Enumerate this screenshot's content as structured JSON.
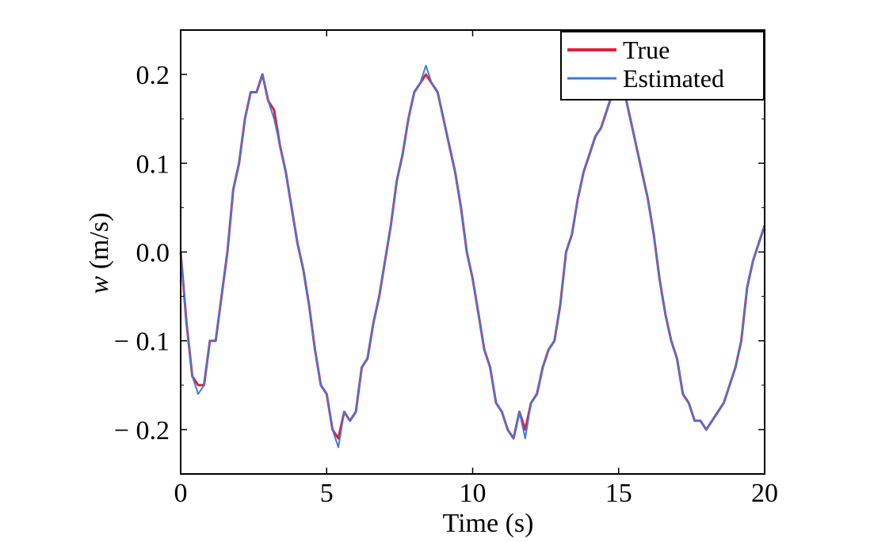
{
  "chart_data": {
    "type": "line",
    "xlabel": "Time (s)",
    "ylabel_var": "w",
    "ylabel_unit": " (m/s)",
    "xlim": [
      0,
      20
    ],
    "ylim": [
      -0.25,
      0.25
    ],
    "x_ticks": [
      0,
      5,
      10,
      15,
      20
    ],
    "x_tick_labels": [
      "0",
      "5",
      "10",
      "15",
      "20"
    ],
    "y_ticks": [
      0.2,
      0.1,
      0.0,
      -0.1,
      -0.2
    ],
    "y_tick_labels": [
      "0.2",
      "0.1",
      "0.0",
      "− 0.1",
      "− 0.2"
    ],
    "grid": false,
    "legend_position": "top-right",
    "series": [
      {
        "name": "True",
        "color": "#e0203a",
        "x": [
          0,
          0.2,
          0.4,
          0.6,
          0.8,
          1.0,
          1.2,
          1.4,
          1.6,
          1.8,
          2.0,
          2.2,
          2.4,
          2.6,
          2.8,
          3.0,
          3.2,
          3.4,
          3.6,
          3.8,
          4.0,
          4.2,
          4.4,
          4.6,
          4.8,
          5.0,
          5.2,
          5.4,
          5.6,
          5.8,
          6.0,
          6.2,
          6.4,
          6.6,
          6.8,
          7.0,
          7.2,
          7.4,
          7.6,
          7.8,
          8.0,
          8.2,
          8.4,
          8.6,
          8.8,
          9.0,
          9.2,
          9.4,
          9.6,
          9.8,
          10.0,
          10.2,
          10.4,
          10.6,
          10.8,
          11.0,
          11.2,
          11.4,
          11.6,
          11.8,
          12.0,
          12.2,
          12.4,
          12.6,
          12.8,
          13.0,
          13.2,
          13.4,
          13.6,
          13.8,
          14.0,
          14.2,
          14.4,
          14.6,
          14.8,
          15.0,
          15.2,
          15.4,
          15.6,
          15.8,
          16.0,
          16.2,
          16.4,
          16.6,
          16.8,
          17.0,
          17.2,
          17.4,
          17.6,
          17.8,
          18.0,
          18.2,
          18.4,
          18.6,
          18.8,
          19.0,
          19.2,
          19.4,
          19.6,
          19.8,
          20.0
        ],
        "values": [
          0.0,
          -0.08,
          -0.14,
          -0.15,
          -0.15,
          -0.1,
          -0.1,
          -0.05,
          0.0,
          0.07,
          0.1,
          0.15,
          0.18,
          0.18,
          0.2,
          0.17,
          0.16,
          0.12,
          0.09,
          0.05,
          0.01,
          -0.02,
          -0.06,
          -0.11,
          -0.15,
          -0.16,
          -0.2,
          -0.21,
          -0.18,
          -0.19,
          -0.18,
          -0.13,
          -0.12,
          -0.08,
          -0.05,
          -0.01,
          0.03,
          0.08,
          0.11,
          0.15,
          0.18,
          0.19,
          0.2,
          0.19,
          0.18,
          0.15,
          0.12,
          0.09,
          0.05,
          0.0,
          -0.03,
          -0.07,
          -0.11,
          -0.13,
          -0.17,
          -0.18,
          -0.2,
          -0.21,
          -0.18,
          -0.2,
          -0.17,
          -0.16,
          -0.13,
          -0.11,
          -0.1,
          -0.06,
          0.0,
          0.02,
          0.06,
          0.09,
          0.11,
          0.13,
          0.14,
          0.16,
          0.18,
          0.19,
          0.18,
          0.15,
          0.12,
          0.09,
          0.06,
          0.02,
          -0.03,
          -0.07,
          -0.1,
          -0.12,
          -0.16,
          -0.17,
          -0.19,
          -0.19,
          -0.2,
          -0.19,
          -0.18,
          -0.17,
          -0.15,
          -0.13,
          -0.1,
          -0.04,
          -0.01,
          0.01,
          0.03
        ]
      },
      {
        "name": "Estimated",
        "color": "#3a7be0",
        "x": [
          0,
          0.2,
          0.4,
          0.6,
          0.8,
          1.0,
          1.2,
          1.4,
          1.6,
          1.8,
          2.0,
          2.2,
          2.4,
          2.6,
          2.8,
          3.0,
          3.2,
          3.4,
          3.6,
          3.8,
          4.0,
          4.2,
          4.4,
          4.6,
          4.8,
          5.0,
          5.2,
          5.4,
          5.6,
          5.8,
          6.0,
          6.2,
          6.4,
          6.6,
          6.8,
          7.0,
          7.2,
          7.4,
          7.6,
          7.8,
          8.0,
          8.2,
          8.4,
          8.6,
          8.8,
          9.0,
          9.2,
          9.4,
          9.6,
          9.8,
          10.0,
          10.2,
          10.4,
          10.6,
          10.8,
          11.0,
          11.2,
          11.4,
          11.6,
          11.8,
          12.0,
          12.2,
          12.4,
          12.6,
          12.8,
          13.0,
          13.2,
          13.4,
          13.6,
          13.8,
          14.0,
          14.2,
          14.4,
          14.6,
          14.8,
          15.0,
          15.2,
          15.4,
          15.6,
          15.8,
          16.0,
          16.2,
          16.4,
          16.6,
          16.8,
          17.0,
          17.2,
          17.4,
          17.6,
          17.8,
          18.0,
          18.2,
          18.4,
          18.6,
          18.8,
          19.0,
          19.2,
          19.4,
          19.6,
          19.8,
          20.0
        ],
        "values": [
          0.0,
          -0.08,
          -0.14,
          -0.16,
          -0.15,
          -0.1,
          -0.1,
          -0.05,
          0.0,
          0.07,
          0.1,
          0.15,
          0.18,
          0.18,
          0.2,
          0.17,
          0.15,
          0.12,
          0.09,
          0.05,
          0.01,
          -0.02,
          -0.06,
          -0.11,
          -0.15,
          -0.16,
          -0.2,
          -0.22,
          -0.18,
          -0.19,
          -0.18,
          -0.13,
          -0.12,
          -0.08,
          -0.05,
          -0.01,
          0.03,
          0.08,
          0.11,
          0.15,
          0.18,
          0.19,
          0.21,
          0.19,
          0.18,
          0.15,
          0.12,
          0.09,
          0.05,
          0.0,
          -0.03,
          -0.07,
          -0.11,
          -0.13,
          -0.17,
          -0.18,
          -0.2,
          -0.21,
          -0.18,
          -0.21,
          -0.17,
          -0.16,
          -0.13,
          -0.11,
          -0.1,
          -0.06,
          0.0,
          0.02,
          0.06,
          0.09,
          0.11,
          0.13,
          0.14,
          0.16,
          0.18,
          0.19,
          0.18,
          0.15,
          0.12,
          0.09,
          0.06,
          0.02,
          -0.03,
          -0.07,
          -0.1,
          -0.12,
          -0.16,
          -0.17,
          -0.19,
          -0.19,
          -0.2,
          -0.19,
          -0.18,
          -0.17,
          -0.15,
          -0.13,
          -0.1,
          -0.04,
          -0.01,
          0.01,
          0.03
        ]
      }
    ]
  }
}
